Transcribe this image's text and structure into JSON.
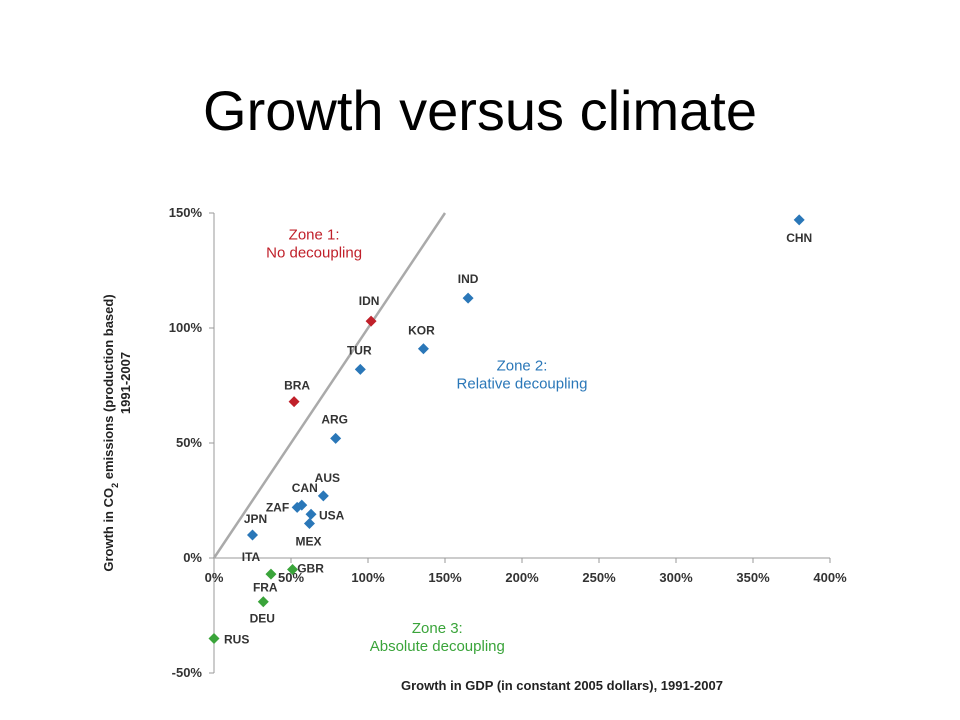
{
  "slide": {
    "title": "Growth versus climate"
  },
  "chart_data": {
    "type": "scatter",
    "title": "",
    "xlabel": "Growth in GDP (in constant 2005 dollars), 1991-2007",
    "ylabel_line1": "Growth in CO",
    "ylabel_sub": "2",
    "ylabel_line1_rest": " emissions (production based)",
    "ylabel_line2": "1991-2007",
    "xlim": [
      0,
      400
    ],
    "ylim": [
      -50,
      150
    ],
    "x_ticks": [
      "0%",
      "50%",
      "100%",
      "150%",
      "200%",
      "250%",
      "300%",
      "350%",
      "400%"
    ],
    "x_tick_values": [
      0,
      50,
      100,
      150,
      200,
      250,
      300,
      350,
      400
    ],
    "y_ticks": [
      "150%",
      "100%",
      "50%",
      "0%",
      "-50%"
    ],
    "y_tick_values": [
      150,
      100,
      50,
      0,
      -50
    ],
    "reference_line": {
      "from": [
        0,
        0
      ],
      "to": [
        150,
        150
      ]
    },
    "colors": {
      "zone1": "#c0202a",
      "zone2": "#2a77b8",
      "zone3": "#3aa43a",
      "line": "#aaaaaa",
      "axis": "#999999"
    },
    "zones": [
      {
        "line1": "Zone 1:",
        "line2": "No decoupling",
        "color": "#c0202a",
        "x": 65,
        "y": 135
      },
      {
        "line1": "Zone 2:",
        "line2": "Relative decoupling",
        "color": "#2a77b8",
        "x": 200,
        "y": 78
      },
      {
        "line1": "Zone 3:",
        "line2": "Absolute decoupling",
        "color": "#3aa43a",
        "x": 145,
        "y": -36
      }
    ],
    "points": [
      {
        "label": "CHN",
        "x": 380,
        "y": 147,
        "zone": 2,
        "ldx": 0,
        "ldy": 22,
        "anchor": "middle"
      },
      {
        "label": "IND",
        "x": 165,
        "y": 113,
        "zone": 2,
        "ldx": 0,
        "ldy": -15,
        "anchor": "middle"
      },
      {
        "label": "IDN",
        "x": 102,
        "y": 103,
        "zone": 1,
        "ldx": -2,
        "ldy": -16,
        "anchor": "middle"
      },
      {
        "label": "KOR",
        "x": 136,
        "y": 91,
        "zone": 2,
        "ldx": -2,
        "ldy": -14,
        "anchor": "middle"
      },
      {
        "label": "TUR",
        "x": 95,
        "y": 82,
        "zone": 2,
        "ldx": -1,
        "ldy": -15,
        "anchor": "middle"
      },
      {
        "label": "BRA",
        "x": 52,
        "y": 68,
        "zone": 1,
        "ldx": 3,
        "ldy": -12,
        "anchor": "middle"
      },
      {
        "label": "ARG",
        "x": 79,
        "y": 52,
        "zone": 2,
        "ldx": -1,
        "ldy": -15,
        "anchor": "middle"
      },
      {
        "label": "AUS",
        "x": 71,
        "y": 27,
        "zone": 2,
        "ldx": 4,
        "ldy": -14,
        "anchor": "middle"
      },
      {
        "label": "CAN",
        "x": 57,
        "y": 23,
        "zone": 2,
        "ldx": 3,
        "ldy": -13,
        "anchor": "middle"
      },
      {
        "label": "ZAF",
        "x": 54,
        "y": 22,
        "zone": 2,
        "ldx": -8,
        "ldy": 4,
        "anchor": "end"
      },
      {
        "label": "USA",
        "x": 63,
        "y": 19,
        "zone": 2,
        "ldx": 8,
        "ldy": 5,
        "anchor": "start"
      },
      {
        "label": "MEX",
        "x": 62,
        "y": 15,
        "zone": 2,
        "ldx": -1,
        "ldy": 22,
        "anchor": "middle"
      },
      {
        "label": "JPN",
        "x": 25,
        "y": 10,
        "zone": 2,
        "ldx": 3,
        "ldy": -12,
        "anchor": "middle"
      },
      {
        "label": "ITA",
        "x": 37,
        "y": -7,
        "zone": 3,
        "ldx": -20,
        "ldy": -13,
        "anchor": "middle"
      },
      {
        "label": "GBR",
        "x": 51,
        "y": -5,
        "zone": 3,
        "ldx": 18,
        "ldy": 3,
        "anchor": "middle"
      },
      {
        "label": "FRA",
        "x": 32,
        "y": -19,
        "zone": 3,
        "ldx": 2,
        "ldy": -10,
        "anchor": "middle"
      },
      {
        "label": "DEU",
        "x": 32,
        "y": -19,
        "zone": 3,
        "ldx": -1,
        "ldy": 21,
        "anchor": "middle"
      },
      {
        "label": "RUS",
        "x": 0,
        "y": -35,
        "zone": 3,
        "ldx": 10,
        "ldy": 5,
        "anchor": "start"
      }
    ]
  }
}
